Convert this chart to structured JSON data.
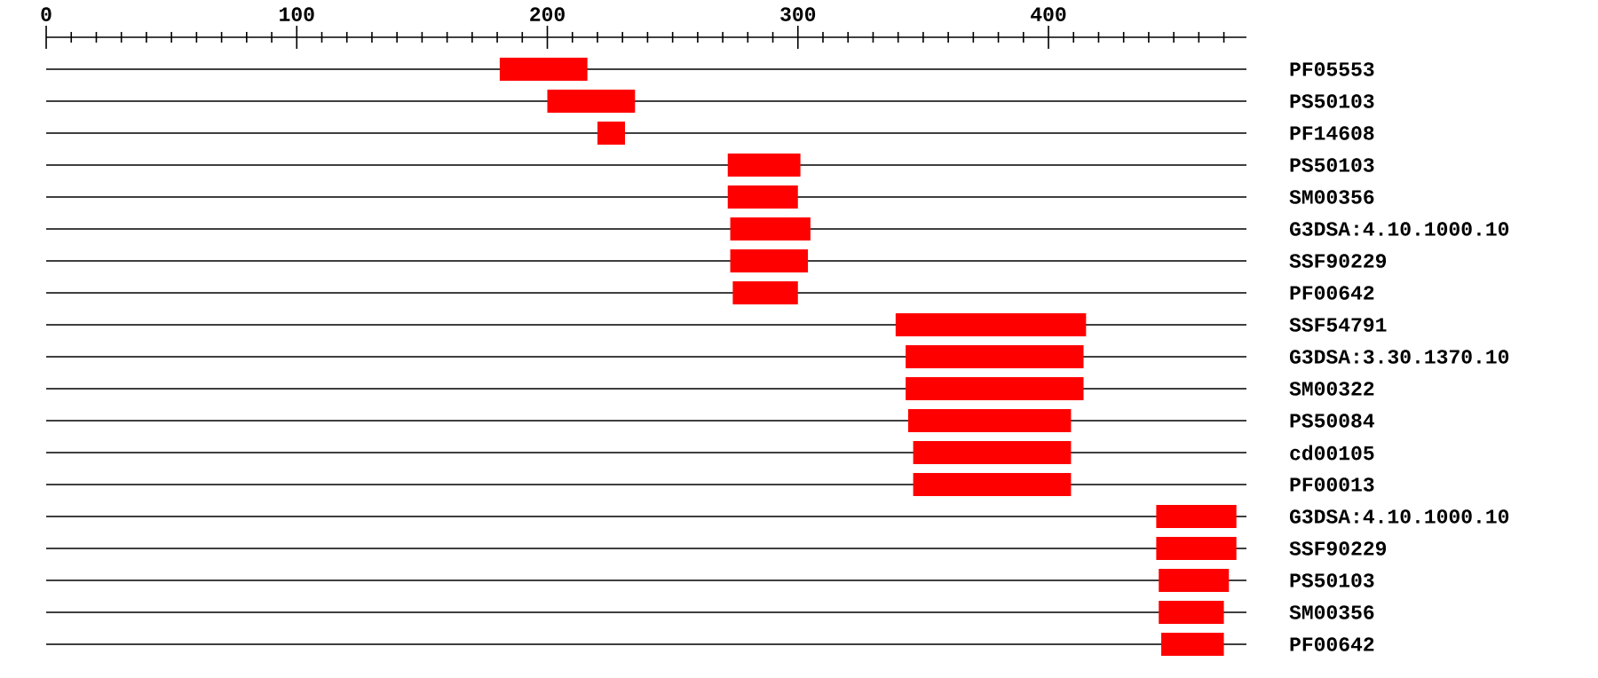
{
  "chart_data": {
    "type": "bar",
    "orientation": "horizontal",
    "color": "#ff0000",
    "grid": "y",
    "tick_labels": "xy",
    "categories": [
      "PF05553",
      "PS50103",
      "PF14608",
      "PS50103",
      "SM00356",
      "G3DSA:4.10.1000.10",
      "SSF90229",
      "PF00642",
      "SSF54791",
      "G3DSA:3.30.1370.10",
      "SM00322",
      "PS50084",
      "cd00105",
      "PF00013",
      "G3DSA:4.10.1000.10",
      "SSF90229",
      "PS50103",
      "SM00356",
      "PF00642"
    ],
    "base": [
      181,
      200,
      220,
      272,
      272,
      273,
      273,
      274,
      339,
      343,
      343,
      344,
      346,
      346,
      443,
      443,
      444,
      444,
      445
    ],
    "values": [
      35,
      35,
      11,
      29,
      28,
      32,
      31,
      26,
      76,
      71,
      71,
      65,
      63,
      63,
      32,
      32,
      28,
      26,
      25
    ],
    "xlim": [
      0,
      479
    ],
    "xticks": [
      0,
      {
        "value": 10,
        "label": null
      },
      {
        "value": 20,
        "label": null
      },
      {
        "value": 30,
        "label": null
      },
      {
        "value": 40,
        "label": null
      },
      {
        "value": 50,
        "label": null
      },
      {
        "value": 60,
        "label": null
      },
      {
        "value": 70,
        "label": null
      },
      {
        "value": 80,
        "label": null
      },
      {
        "value": 90,
        "label": null
      },
      100,
      {
        "value": 110,
        "label": null
      },
      {
        "value": 120,
        "label": null
      },
      {
        "value": 130,
        "label": null
      },
      {
        "value": 140,
        "label": null
      },
      {
        "value": 150,
        "label": null
      },
      {
        "value": 160,
        "label": null
      },
      {
        "value": 170,
        "label": null
      },
      {
        "value": 180,
        "label": null
      },
      {
        "value": 190,
        "label": null
      },
      200,
      {
        "value": 210,
        "label": null
      },
      {
        "value": 220,
        "label": null
      },
      {
        "value": 230,
        "label": null
      },
      {
        "value": 240,
        "label": null
      },
      {
        "value": 250,
        "label": null
      },
      {
        "value": 260,
        "label": null
      },
      {
        "value": 270,
        "label": null
      },
      {
        "value": 280,
        "label": null
      },
      {
        "value": 290,
        "label": null
      },
      300,
      {
        "value": 310,
        "label": null
      },
      {
        "value": 320,
        "label": null
      },
      {
        "value": 330,
        "label": null
      },
      {
        "value": 340,
        "label": null
      },
      {
        "value": 350,
        "label": null
      },
      {
        "value": 360,
        "label": null
      },
      {
        "value": 370,
        "label": null
      },
      {
        "value": 380,
        "label": null
      },
      {
        "value": 390,
        "label": null
      },
      400,
      {
        "value": 410,
        "label": null
      },
      {
        "value": 420,
        "label": null
      },
      {
        "value": 430,
        "label": null
      },
      {
        "value": 440,
        "label": null
      },
      {
        "value": 450,
        "label": null
      },
      {
        "value": 460,
        "label": null
      },
      {
        "value": 470,
        "label": null
      }
    ]
  }
}
